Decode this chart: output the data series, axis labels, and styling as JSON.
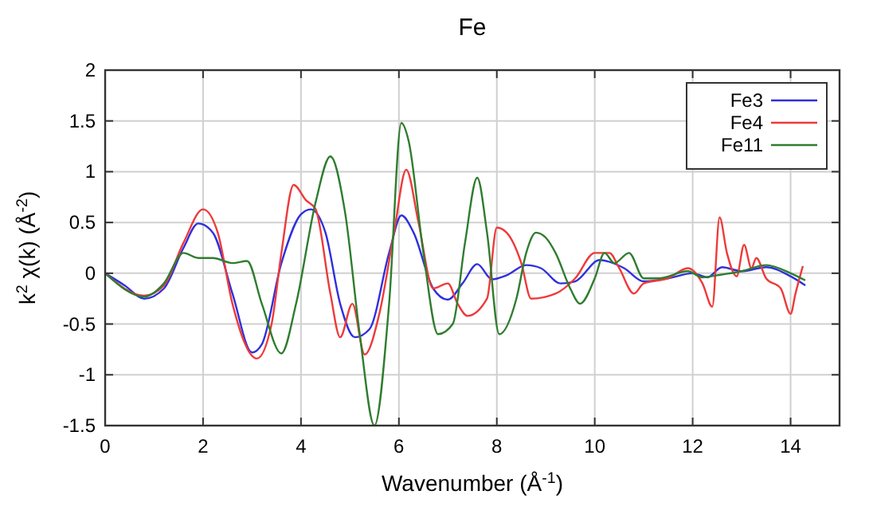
{
  "chart_data": {
    "type": "line",
    "title": "Fe",
    "xlabel": "Wavenumber    (Å$^{-1}$)",
    "ylabel": "k$^{2}$ χ(k)    (Å$^{-2}$)",
    "xlim": [
      0,
      15
    ],
    "xticks": [
      0,
      2,
      4,
      6,
      8,
      10,
      12,
      14
    ],
    "ylim": [
      -1.5,
      2
    ],
    "yticks": [
      -1.5,
      -1,
      -0.5,
      0,
      0.5,
      1,
      1.5,
      2
    ],
    "grid": true,
    "legend": "top right",
    "line_style": "solid",
    "marker": "none",
    "series": [
      {
        "name": "Fe3",
        "color": "#2f2fdd",
        "x": [
          0,
          0.4,
          0.8,
          1.2,
          1.6,
          1.9,
          2.2,
          2.6,
          3.0,
          3.2,
          3.6,
          4.0,
          4.2,
          4.5,
          4.8,
          5.1,
          5.4,
          5.8,
          6.05,
          6.3,
          6.7,
          7.0,
          7.3,
          7.6,
          7.9,
          8.2,
          8.6,
          8.9,
          9.3,
          9.6,
          10.1,
          10.6,
          11.0,
          11.5,
          12.0,
          12.3,
          12.6,
          13.0,
          13.5,
          14.0,
          14.3
        ],
        "values": [
          0,
          -0.12,
          -0.25,
          -0.15,
          0.25,
          0.49,
          0.4,
          -0.2,
          -0.78,
          -0.7,
          0.1,
          0.58,
          0.63,
          0.4,
          -0.3,
          -0.63,
          -0.55,
          0.2,
          0.57,
          0.4,
          -0.15,
          -0.26,
          -0.1,
          0.09,
          -0.06,
          -0.02,
          0.08,
          0.05,
          -0.1,
          -0.08,
          0.13,
          0.05,
          -0.08,
          -0.05,
          0,
          -0.04,
          0.06,
          0.02,
          0.06,
          -0.03,
          -0.12
        ]
      },
      {
        "name": "Fe4",
        "color": "#ee3a3a",
        "x": [
          0,
          0.8,
          1.2,
          1.6,
          2.0,
          2.3,
          2.6,
          3.1,
          3.4,
          3.6,
          3.85,
          4.1,
          4.3,
          4.6,
          4.8,
          5.05,
          5.3,
          5.6,
          5.9,
          6.15,
          6.4,
          6.7,
          7.0,
          7.2,
          7.4,
          7.8,
          8.0,
          8.2,
          8.5,
          8.7,
          9.2,
          9.6,
          10.0,
          10.3,
          10.5,
          10.8,
          11.0,
          11.5,
          11.9,
          12.2,
          12.4,
          12.55,
          12.7,
          12.9,
          13.05,
          13.2,
          13.3,
          13.5,
          13.8,
          14.0,
          14.1,
          14.25
        ],
        "values": [
          0,
          -0.22,
          -0.12,
          0.3,
          0.63,
          0.4,
          -0.3,
          -0.84,
          -0.5,
          0.2,
          0.87,
          0.72,
          0.63,
          -0.2,
          -0.63,
          -0.3,
          -0.8,
          -0.4,
          0.4,
          1.02,
          0.5,
          -0.15,
          -0.1,
          -0.3,
          -0.42,
          -0.25,
          0.45,
          0.4,
          0.1,
          -0.25,
          -0.2,
          -0.05,
          0.2,
          0.2,
          0.05,
          -0.2,
          -0.1,
          -0.05,
          0.05,
          -0.1,
          -0.33,
          0.55,
          0.2,
          -0.03,
          0.28,
          0.05,
          0.15,
          -0.05,
          -0.15,
          -0.4,
          -0.2,
          0.07
        ]
      },
      {
        "name": "Fe11",
        "color": "#2e7d2e",
        "x": [
          0,
          0.8,
          1.2,
          1.6,
          1.9,
          2.2,
          2.6,
          2.9,
          3.2,
          3.6,
          3.9,
          4.3,
          4.6,
          4.9,
          5.2,
          5.5,
          5.8,
          6.05,
          6.2,
          6.5,
          6.8,
          7.1,
          7.35,
          7.6,
          7.8,
          8.05,
          8.4,
          8.6,
          8.8,
          9.0,
          9.2,
          9.5,
          9.7,
          10.0,
          10.2,
          10.4,
          10.7,
          11.0,
          11.3,
          11.9,
          12.2,
          12.5,
          13.0,
          13.5,
          14.0,
          14.3
        ],
        "values": [
          0,
          -0.23,
          -0.1,
          0.2,
          0.15,
          0.15,
          0.1,
          0.12,
          -0.3,
          -0.79,
          -0.3,
          0.7,
          1.15,
          0.6,
          -0.6,
          -1.5,
          -0.3,
          1.48,
          1.3,
          0.2,
          -0.6,
          -0.5,
          0.3,
          0.94,
          0.4,
          -0.6,
          -0.25,
          0.2,
          0.4,
          0.35,
          0.2,
          -0.15,
          -0.3,
          -0.05,
          0.2,
          0.1,
          0.2,
          -0.05,
          -0.05,
          0.02,
          -0.04,
          -0.02,
          0.02,
          0.08,
          0,
          -0.07
        ]
      }
    ]
  }
}
